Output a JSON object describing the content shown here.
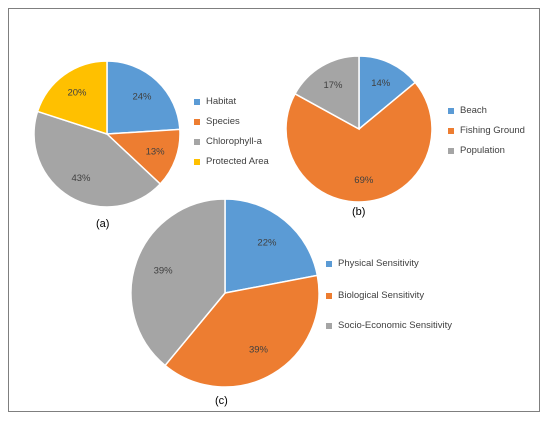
{
  "chart_data": [
    {
      "type": "pie",
      "caption": "(a)",
      "categories": [
        "Habitat",
        "Species",
        "Chlorophyll-a",
        "Protected Area"
      ],
      "values": [
        24,
        13,
        43,
        20
      ],
      "labels": [
        "24%",
        "13%",
        "43%",
        "20%"
      ],
      "colors": [
        "#5b9bd5",
        "#ed7d31",
        "#a5a5a5",
        "#ffc000"
      ],
      "legend_position": "right"
    },
    {
      "type": "pie",
      "caption": "(b)",
      "categories": [
        "Beach",
        "Fishing Ground",
        "Population"
      ],
      "values": [
        14,
        69,
        17
      ],
      "labels": [
        "14%",
        "69%",
        "17%"
      ],
      "colors": [
        "#5b9bd5",
        "#ed7d31",
        "#a5a5a5"
      ],
      "legend_position": "right"
    },
    {
      "type": "pie",
      "caption": "(c)",
      "categories": [
        "Physical Sensitivity",
        "Biological Sensitivity",
        "Socio-Economic Sensitivity"
      ],
      "values": [
        22,
        39,
        39
      ],
      "labels": [
        "22%",
        "39%",
        "39%"
      ],
      "colors": [
        "#5b9bd5",
        "#ed7d31",
        "#a5a5a5"
      ],
      "legend_position": "right"
    }
  ]
}
